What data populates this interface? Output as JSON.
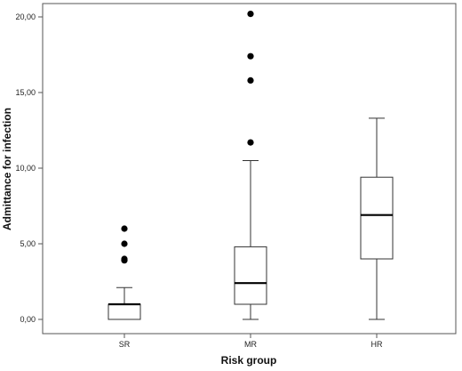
{
  "chart_data": {
    "type": "boxplot",
    "xlabel": "Risk group",
    "ylabel": "Admittance for infection",
    "ylim": [
      -1,
      21
    ],
    "yticks": [
      0,
      5,
      10,
      15,
      20
    ],
    "ytick_labels": [
      "0,00",
      "5,00",
      "10,00",
      "15,00",
      "20,00"
    ],
    "grid": false,
    "categories": [
      "SR",
      "MR",
      "HR"
    ],
    "boxes": [
      {
        "category": "SR",
        "whisker_low": 0,
        "q1": 0,
        "median": 1,
        "q3": 1,
        "whisker_high": 2.1,
        "outliers": [
          3.9,
          4.0,
          5.0,
          6.0
        ]
      },
      {
        "category": "MR",
        "whisker_low": 0,
        "q1": 1,
        "median": 2.4,
        "q3": 4.8,
        "whisker_high": 10.5,
        "outliers": [
          11.7,
          15.8,
          17.4,
          20.2
        ]
      },
      {
        "category": "HR",
        "whisker_low": 0,
        "q1": 4,
        "median": 6.9,
        "q3": 9.4,
        "whisker_high": 13.3,
        "outliers": []
      }
    ],
    "colors": {
      "box_fill": "#ffffff",
      "box_stroke": "#333333",
      "median": "#000000",
      "outlier": "#000000"
    }
  }
}
